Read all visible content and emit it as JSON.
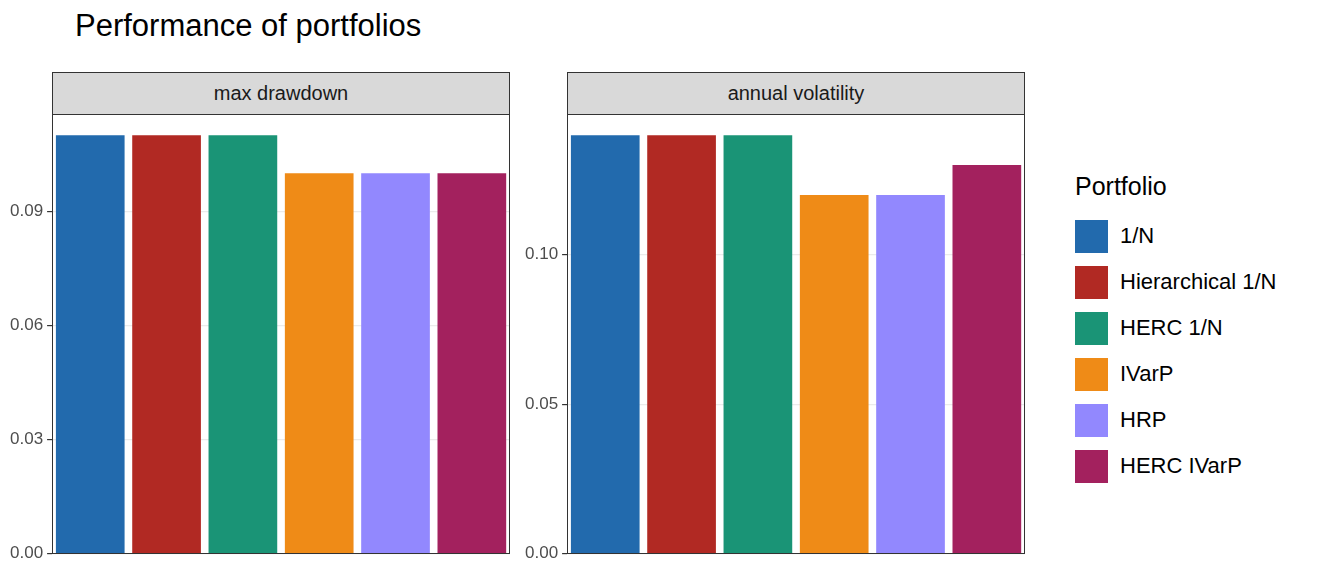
{
  "title": "Performance of portfolios",
  "legend_title": "Portfolio",
  "legend": "right",
  "chart_data": [
    {
      "type": "bar",
      "title": "max drawdown",
      "categories": [
        "1/N",
        "Hierarchical 1/N",
        "HERC 1/N",
        "IVarP",
        "HRP",
        "HERC IVarP"
      ],
      "values": [
        0.11,
        0.11,
        0.11,
        0.1,
        0.1,
        0.1
      ],
      "colors": [
        "#226aad",
        "#b12923",
        "#1a9476",
        "#ef8b17",
        "#9288fe",
        "#a3215e"
      ],
      "ylim": [
        0,
        0.1155
      ],
      "yticks": [
        {
          "value": 0,
          "label": "0.00"
        },
        0.03,
        0.06,
        0.09
      ],
      "grid": true,
      "tick_labels": "y"
    },
    {
      "type": "bar",
      "title": "annual volatility",
      "categories": [
        "1/N",
        "Hierarchical 1/N",
        "HERC 1/N",
        "IVarP",
        "HRP",
        "HERC IVarP"
      ],
      "values": [
        0.14,
        0.14,
        0.14,
        0.12,
        0.12,
        0.13
      ],
      "colors": [
        "#226aad",
        "#b12923",
        "#1a9476",
        "#ef8b17",
        "#9288fe",
        "#a3215e"
      ],
      "ylim": [
        0,
        0.147
      ],
      "yticks": [
        {
          "value": 0,
          "label": "0.00"
        },
        0.05,
        {
          "value": 0.1,
          "label": "0.10"
        }
      ],
      "grid": true,
      "tick_labels": "y"
    }
  ]
}
